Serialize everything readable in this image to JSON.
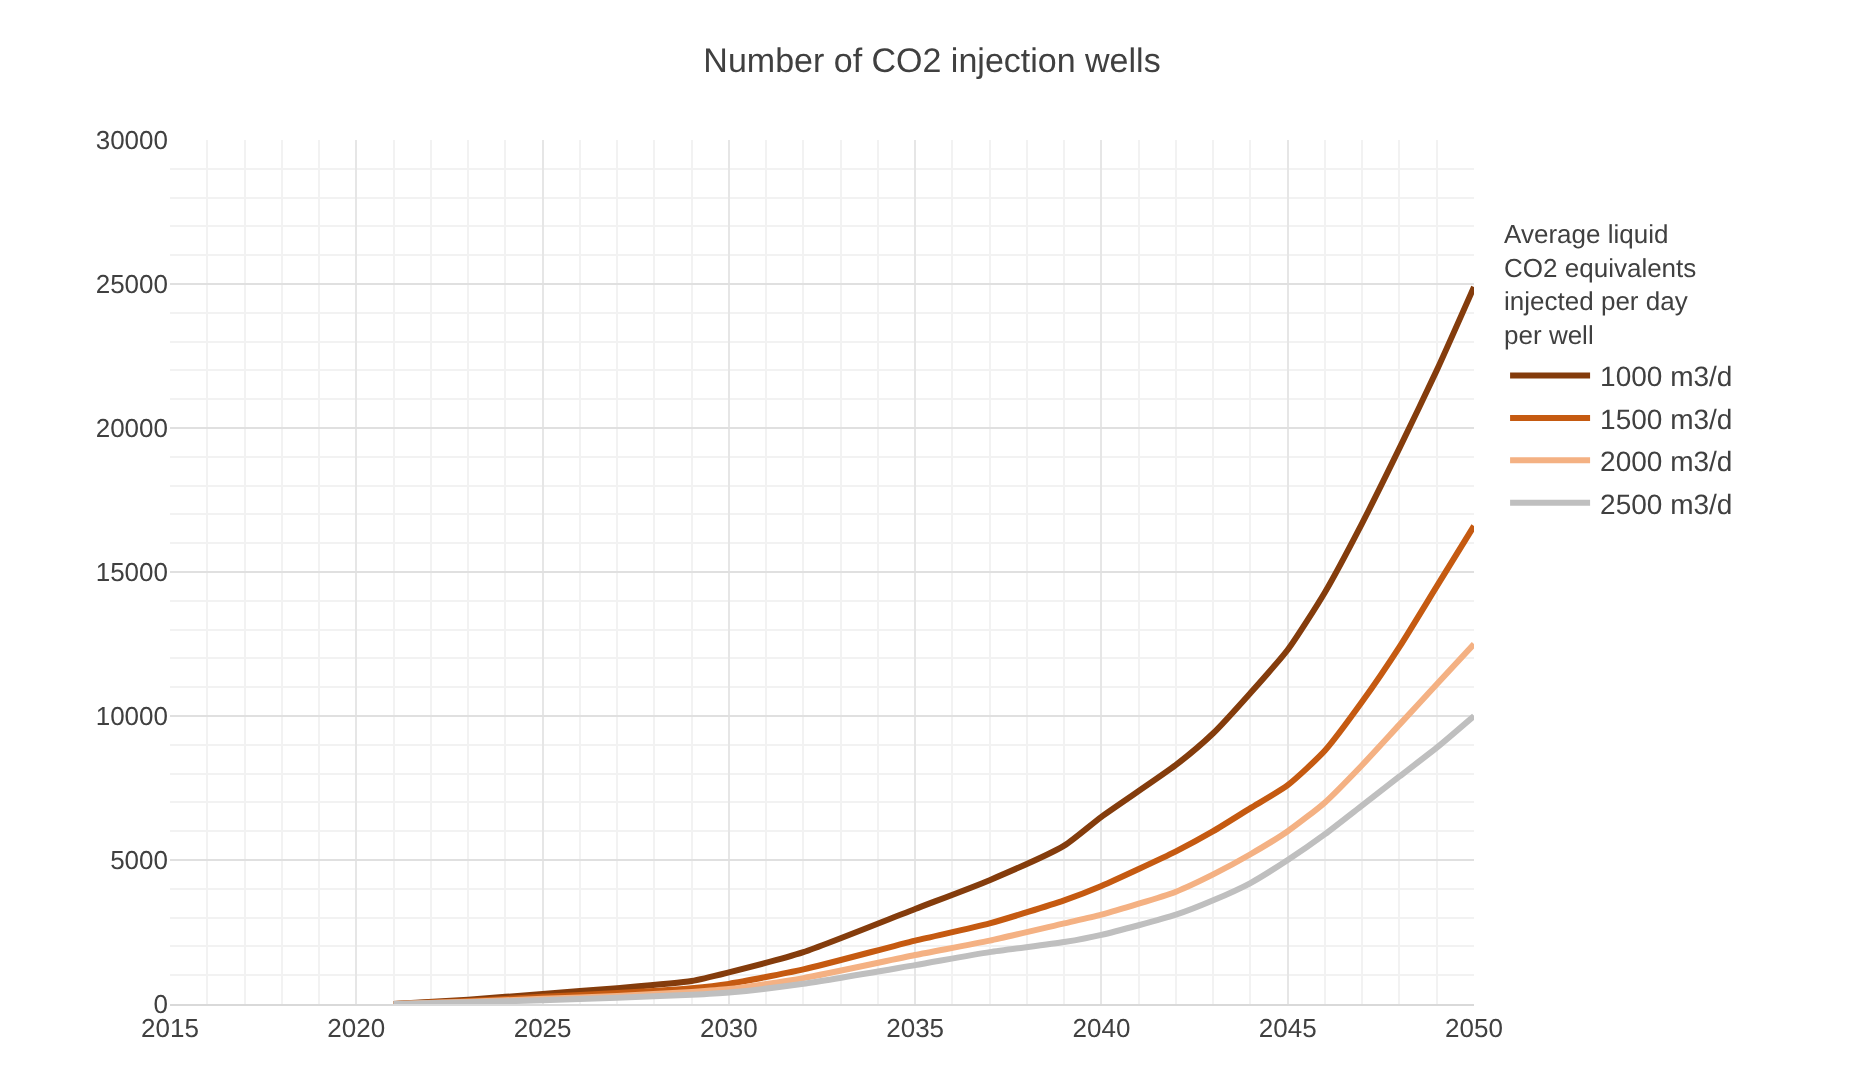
{
  "chart_data": {
    "type": "line",
    "title": "Number of CO2 injection wells",
    "legend_title": "Average liquid\nCO2 equivalents\ninjected per day\nper well",
    "x": [
      2021,
      2023,
      2025,
      2027,
      2029,
      2030,
      2032,
      2035,
      2037,
      2039,
      2040,
      2042,
      2043,
      2044,
      2045,
      2046,
      2047,
      2048,
      2049,
      2050
    ],
    "series": [
      {
        "name": "1000 m3/d",
        "color": "#843c0c",
        "values": [
          0,
          150,
          350,
          550,
          800,
          1100,
          1800,
          3300,
          4300,
          5500,
          6500,
          8300,
          9400,
          10800,
          12300,
          14300,
          16700,
          19300,
          22000,
          24900
        ]
      },
      {
        "name": "1500 m3/d",
        "color": "#c55a11",
        "values": [
          0,
          100,
          250,
          380,
          550,
          700,
          1200,
          2200,
          2800,
          3600,
          4100,
          5300,
          6000,
          6800,
          7600,
          8800,
          10500,
          12400,
          14500,
          16600
        ]
      },
      {
        "name": "2000 m3/d",
        "color": "#f4b183",
        "values": [
          0,
          80,
          180,
          280,
          420,
          520,
          900,
          1700,
          2200,
          2800,
          3100,
          3900,
          4500,
          5200,
          6000,
          7000,
          8300,
          9700,
          11100,
          12500
        ]
      },
      {
        "name": "2500 m3/d",
        "color": "#bfbfbf",
        "values": [
          0,
          60,
          130,
          220,
          320,
          400,
          700,
          1350,
          1800,
          2150,
          2400,
          3100,
          3600,
          4200,
          5000,
          5900,
          6900,
          7900,
          8900,
          10000
        ]
      }
    ],
    "xlim": [
      2015,
      2050
    ],
    "xticks": [
      2015,
      2020,
      2025,
      2030,
      2035,
      2040,
      2045,
      2050
    ],
    "ylim": [
      0,
      30000
    ],
    "yticks": [
      0,
      5000,
      10000,
      15000,
      20000,
      25000,
      30000
    ],
    "grid": true,
    "legend": "right",
    "marker": "none",
    "line_style": "solid"
  }
}
